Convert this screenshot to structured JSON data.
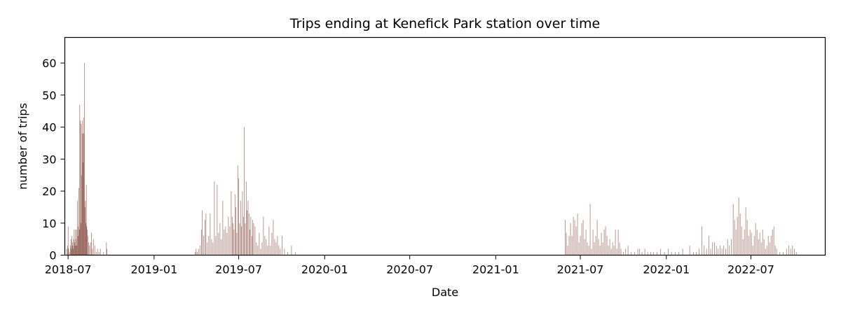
{
  "chart_data": {
    "type": "bar",
    "title": "Trips ending at Kenefick Park station over time",
    "xlabel": "Date",
    "ylabel": "number of trips",
    "bar_color": "#8c564b",
    "x_axis": {
      "type": "date",
      "range": [
        "2018-06-24",
        "2022-12-07"
      ],
      "ticks": [
        "2018-07-01",
        "2019-01-01",
        "2019-07-01",
        "2020-01-01",
        "2020-07-01",
        "2021-01-01",
        "2021-07-01",
        "2022-01-01",
        "2022-07-01"
      ],
      "tick_labels": [
        "2018-07",
        "2019-01",
        "2019-07",
        "2020-01",
        "2020-07",
        "2021-01",
        "2021-07",
        "2022-01",
        "2022-07"
      ]
    },
    "y_axis": {
      "range": [
        0,
        68
      ],
      "ticks": [
        0,
        10,
        20,
        30,
        40,
        50,
        60
      ],
      "tick_labels": [
        "0",
        "10",
        "20",
        "30",
        "40",
        "50",
        "60"
      ]
    },
    "grid": false,
    "legend": "none",
    "series": [
      {
        "values": [
          [
            "2018-06-28",
            2
          ],
          [
            "2018-06-30",
            3
          ],
          [
            "2018-07-01",
            9
          ],
          [
            "2018-07-02",
            2
          ],
          [
            "2018-07-04",
            1
          ],
          [
            "2018-07-06",
            3
          ],
          [
            "2018-07-07",
            5
          ],
          [
            "2018-07-08",
            2
          ],
          [
            "2018-07-09",
            6
          ],
          [
            "2018-07-10",
            4
          ],
          [
            "2018-07-11",
            3
          ],
          [
            "2018-07-12",
            2
          ],
          [
            "2018-07-13",
            5
          ],
          [
            "2018-07-14",
            8
          ],
          [
            "2018-07-15",
            4
          ],
          [
            "2018-07-16",
            3
          ],
          [
            "2018-07-17",
            8
          ],
          [
            "2018-07-18",
            5
          ],
          [
            "2018-07-19",
            8
          ],
          [
            "2018-07-20",
            3
          ],
          [
            "2018-07-21",
            17
          ],
          [
            "2018-07-22",
            6
          ],
          [
            "2018-07-23",
            9
          ],
          [
            "2018-07-24",
            21
          ],
          [
            "2018-07-25",
            8
          ],
          [
            "2018-07-26",
            47
          ],
          [
            "2018-07-27",
            42
          ],
          [
            "2018-07-28",
            10
          ],
          [
            "2018-07-29",
            41
          ],
          [
            "2018-07-30",
            25
          ],
          [
            "2018-07-31",
            42
          ],
          [
            "2018-08-01",
            38
          ],
          [
            "2018-08-02",
            29
          ],
          [
            "2018-08-03",
            43
          ],
          [
            "2018-08-04",
            38
          ],
          [
            "2018-08-05",
            60
          ],
          [
            "2018-08-06",
            15
          ],
          [
            "2018-08-07",
            17
          ],
          [
            "2018-08-08",
            10
          ],
          [
            "2018-08-09",
            22
          ],
          [
            "2018-08-10",
            9
          ],
          [
            "2018-08-11",
            8
          ],
          [
            "2018-08-12",
            6
          ],
          [
            "2018-08-14",
            4
          ],
          [
            "2018-08-16",
            3
          ],
          [
            "2018-08-18",
            4
          ],
          [
            "2018-08-20",
            7
          ],
          [
            "2018-08-22",
            2
          ],
          [
            "2018-08-24",
            5
          ],
          [
            "2018-08-27",
            3
          ],
          [
            "2018-08-30",
            1
          ],
          [
            "2018-09-02",
            2
          ],
          [
            "2018-09-05",
            1
          ],
          [
            "2018-09-08",
            2
          ],
          [
            "2018-09-15",
            1
          ],
          [
            "2018-09-21",
            4
          ],
          [
            "2018-09-22",
            2
          ],
          [
            "2019-03-30",
            1
          ],
          [
            "2019-04-01",
            2
          ],
          [
            "2019-04-03",
            1
          ],
          [
            "2019-04-06",
            2
          ],
          [
            "2019-04-09",
            3
          ],
          [
            "2019-04-12",
            8
          ],
          [
            "2019-04-14",
            14
          ],
          [
            "2019-04-17",
            6
          ],
          [
            "2019-04-20",
            11
          ],
          [
            "2019-04-22",
            13
          ],
          [
            "2019-04-25",
            4
          ],
          [
            "2019-04-28",
            6
          ],
          [
            "2019-05-01",
            13
          ],
          [
            "2019-05-04",
            5
          ],
          [
            "2019-05-07",
            4
          ],
          [
            "2019-05-10",
            23
          ],
          [
            "2019-05-13",
            6
          ],
          [
            "2019-05-16",
            22
          ],
          [
            "2019-05-19",
            7
          ],
          [
            "2019-05-22",
            10
          ],
          [
            "2019-05-25",
            5
          ],
          [
            "2019-05-28",
            17
          ],
          [
            "2019-05-31",
            8
          ],
          [
            "2019-06-03",
            9
          ],
          [
            "2019-06-06",
            7
          ],
          [
            "2019-06-09",
            12
          ],
          [
            "2019-06-12",
            9
          ],
          [
            "2019-06-15",
            20
          ],
          [
            "2019-06-17",
            12
          ],
          [
            "2019-06-19",
            10
          ],
          [
            "2019-06-21",
            8
          ],
          [
            "2019-06-23",
            19
          ],
          [
            "2019-06-25",
            15
          ],
          [
            "2019-06-27",
            7
          ],
          [
            "2019-06-29",
            28
          ],
          [
            "2019-07-01",
            24
          ],
          [
            "2019-07-03",
            10
          ],
          [
            "2019-07-05",
            17
          ],
          [
            "2019-07-07",
            9
          ],
          [
            "2019-07-09",
            20
          ],
          [
            "2019-07-11",
            12
          ],
          [
            "2019-07-13",
            40
          ],
          [
            "2019-07-15",
            10
          ],
          [
            "2019-07-17",
            23
          ],
          [
            "2019-07-19",
            14
          ],
          [
            "2019-07-21",
            17
          ],
          [
            "2019-07-23",
            13
          ],
          [
            "2019-07-25",
            8
          ],
          [
            "2019-07-27",
            12
          ],
          [
            "2019-07-29",
            6
          ],
          [
            "2019-07-31",
            11
          ],
          [
            "2019-08-02",
            10
          ],
          [
            "2019-08-05",
            9
          ],
          [
            "2019-08-08",
            4
          ],
          [
            "2019-08-11",
            3
          ],
          [
            "2019-08-14",
            7
          ],
          [
            "2019-08-17",
            2
          ],
          [
            "2019-08-20",
            4
          ],
          [
            "2019-08-23",
            12
          ],
          [
            "2019-08-26",
            6
          ],
          [
            "2019-08-29",
            5
          ],
          [
            "2019-09-01",
            3
          ],
          [
            "2019-09-04",
            9
          ],
          [
            "2019-09-07",
            3
          ],
          [
            "2019-09-10",
            7
          ],
          [
            "2019-09-13",
            11
          ],
          [
            "2019-09-16",
            5
          ],
          [
            "2019-09-19",
            4
          ],
          [
            "2019-09-22",
            6
          ],
          [
            "2019-09-25",
            3
          ],
          [
            "2019-09-28",
            2
          ],
          [
            "2019-10-02",
            6
          ],
          [
            "2019-10-07",
            2
          ],
          [
            "2019-10-14",
            1
          ],
          [
            "2019-10-22",
            3
          ],
          [
            "2019-10-30",
            1
          ],
          [
            "2021-05-30",
            11
          ],
          [
            "2021-06-01",
            7
          ],
          [
            "2021-06-04",
            3
          ],
          [
            "2021-06-07",
            6
          ],
          [
            "2021-06-10",
            10
          ],
          [
            "2021-06-13",
            6
          ],
          [
            "2021-06-16",
            12
          ],
          [
            "2021-06-19",
            11
          ],
          [
            "2021-06-22",
            9
          ],
          [
            "2021-06-25",
            13
          ],
          [
            "2021-06-28",
            4
          ],
          [
            "2021-07-01",
            6
          ],
          [
            "2021-07-04",
            10
          ],
          [
            "2021-07-07",
            11
          ],
          [
            "2021-07-10",
            5
          ],
          [
            "2021-07-13",
            8
          ],
          [
            "2021-07-16",
            4
          ],
          [
            "2021-07-19",
            3
          ],
          [
            "2021-07-22",
            16
          ],
          [
            "2021-07-25",
            2
          ],
          [
            "2021-07-28",
            8
          ],
          [
            "2021-07-31",
            4
          ],
          [
            "2021-08-03",
            6
          ],
          [
            "2021-08-06",
            11
          ],
          [
            "2021-08-09",
            5
          ],
          [
            "2021-08-12",
            3
          ],
          [
            "2021-08-15",
            7
          ],
          [
            "2021-08-18",
            4
          ],
          [
            "2021-08-21",
            8
          ],
          [
            "2021-08-24",
            9
          ],
          [
            "2021-08-27",
            6
          ],
          [
            "2021-08-30",
            3
          ],
          [
            "2021-09-02",
            5
          ],
          [
            "2021-09-05",
            2
          ],
          [
            "2021-09-08",
            4
          ],
          [
            "2021-09-11",
            3
          ],
          [
            "2021-09-14",
            8
          ],
          [
            "2021-09-17",
            2
          ],
          [
            "2021-09-20",
            8
          ],
          [
            "2021-09-23",
            4
          ],
          [
            "2021-09-26",
            2
          ],
          [
            "2021-10-01",
            1
          ],
          [
            "2021-10-06",
            2
          ],
          [
            "2021-10-11",
            3
          ],
          [
            "2021-10-18",
            1
          ],
          [
            "2021-10-25",
            1
          ],
          [
            "2021-11-01",
            2
          ],
          [
            "2021-11-05",
            2
          ],
          [
            "2021-11-10",
            1
          ],
          [
            "2021-11-16",
            2
          ],
          [
            "2021-11-22",
            1
          ],
          [
            "2021-11-29",
            1
          ],
          [
            "2021-12-05",
            1
          ],
          [
            "2021-12-12",
            1
          ],
          [
            "2021-12-20",
            2
          ],
          [
            "2021-12-28",
            1
          ],
          [
            "2022-01-05",
            2
          ],
          [
            "2022-01-12",
            1
          ],
          [
            "2022-01-20",
            1
          ],
          [
            "2022-01-28",
            1
          ],
          [
            "2022-02-05",
            2
          ],
          [
            "2022-02-20",
            3
          ],
          [
            "2022-02-28",
            1
          ],
          [
            "2022-03-06",
            1
          ],
          [
            "2022-03-12",
            2
          ],
          [
            "2022-03-18",
            9
          ],
          [
            "2022-03-23",
            3
          ],
          [
            "2022-03-28",
            2
          ],
          [
            "2022-04-02",
            6
          ],
          [
            "2022-04-06",
            2
          ],
          [
            "2022-04-10",
            4
          ],
          [
            "2022-04-14",
            4
          ],
          [
            "2022-04-18",
            3
          ],
          [
            "2022-04-22",
            2
          ],
          [
            "2022-04-26",
            3
          ],
          [
            "2022-04-30",
            2
          ],
          [
            "2022-05-04",
            3
          ],
          [
            "2022-05-08",
            2
          ],
          [
            "2022-05-12",
            5
          ],
          [
            "2022-05-16",
            3
          ],
          [
            "2022-05-20",
            5
          ],
          [
            "2022-05-24",
            16
          ],
          [
            "2022-05-27",
            11
          ],
          [
            "2022-05-30",
            8
          ],
          [
            "2022-06-02",
            12
          ],
          [
            "2022-06-05",
            18
          ],
          [
            "2022-06-08",
            13
          ],
          [
            "2022-06-11",
            9
          ],
          [
            "2022-06-14",
            5
          ],
          [
            "2022-06-17",
            8
          ],
          [
            "2022-06-20",
            15
          ],
          [
            "2022-06-23",
            11
          ],
          [
            "2022-06-26",
            6
          ],
          [
            "2022-06-29",
            8
          ],
          [
            "2022-07-02",
            7
          ],
          [
            "2022-07-05",
            3
          ],
          [
            "2022-07-08",
            6
          ],
          [
            "2022-07-11",
            10
          ],
          [
            "2022-07-14",
            8
          ],
          [
            "2022-07-17",
            5
          ],
          [
            "2022-07-20",
            7
          ],
          [
            "2022-07-23",
            4
          ],
          [
            "2022-07-26",
            8
          ],
          [
            "2022-07-29",
            5
          ],
          [
            "2022-08-01",
            2
          ],
          [
            "2022-08-04",
            3
          ],
          [
            "2022-08-07",
            6
          ],
          [
            "2022-08-10",
            4
          ],
          [
            "2022-08-13",
            6
          ],
          [
            "2022-08-16",
            8
          ],
          [
            "2022-08-19",
            9
          ],
          [
            "2022-08-22",
            3
          ],
          [
            "2022-08-25",
            2
          ],
          [
            "2022-09-01",
            1
          ],
          [
            "2022-09-08",
            1
          ],
          [
            "2022-09-15",
            2
          ],
          [
            "2022-09-20",
            3
          ],
          [
            "2022-09-24",
            2
          ],
          [
            "2022-09-28",
            3
          ],
          [
            "2022-10-02",
            2
          ],
          [
            "2022-10-06",
            1
          ]
        ]
      }
    ]
  }
}
